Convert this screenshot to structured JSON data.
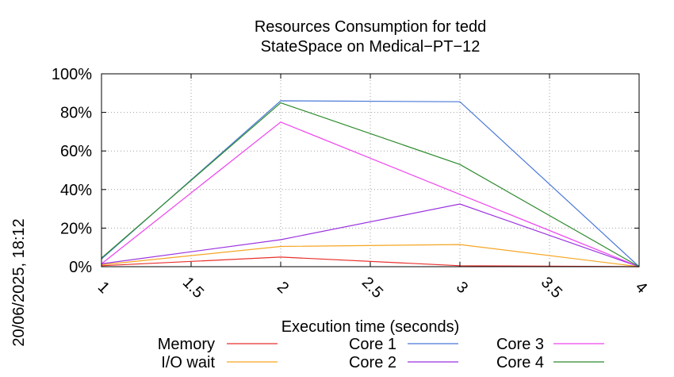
{
  "chart_data": {
    "type": "line",
    "title": [
      "Resources Consumption for tedd",
      "StateSpace on Medical−PT−12"
    ],
    "xlabel": "Execution time (seconds)",
    "ylabel": "",
    "side_label": "20/06/2025, 18:12",
    "x": [
      1,
      2,
      3,
      4
    ],
    "xlim": [
      1,
      4
    ],
    "ylim": [
      0,
      100
    ],
    "xticks": [
      1,
      1.5,
      2,
      2.5,
      3,
      3.5,
      4
    ],
    "xtick_labels": [
      "1",
      "1.5",
      "2",
      "2.5",
      "3",
      "3.5",
      "4"
    ],
    "yticks": [
      0,
      20,
      40,
      60,
      80,
      100
    ],
    "ytick_labels": [
      "0%",
      "20%",
      "40%",
      "60%",
      "80%",
      "100%"
    ],
    "grid": true,
    "legend_position": "bottom",
    "series": [
      {
        "name": "Memory",
        "color": "#e8302c",
        "values": [
          0.5,
          5,
          0.5,
          0
        ]
      },
      {
        "name": "I/O wait",
        "color": "#f5a623",
        "values": [
          1,
          10.5,
          11.5,
          0
        ]
      },
      {
        "name": "Core 1",
        "color": "#4a78d8",
        "values": [
          4,
          86,
          85.5,
          0
        ]
      },
      {
        "name": "Core 2",
        "color": "#9b32e0",
        "values": [
          1.5,
          14,
          32.5,
          0
        ]
      },
      {
        "name": "Core 3",
        "color": "#ee44ee",
        "values": [
          1.5,
          75,
          37.5,
          0
        ]
      },
      {
        "name": "Core 4",
        "color": "#2e8b2e",
        "values": [
          4.5,
          85,
          53,
          0
        ]
      }
    ]
  }
}
